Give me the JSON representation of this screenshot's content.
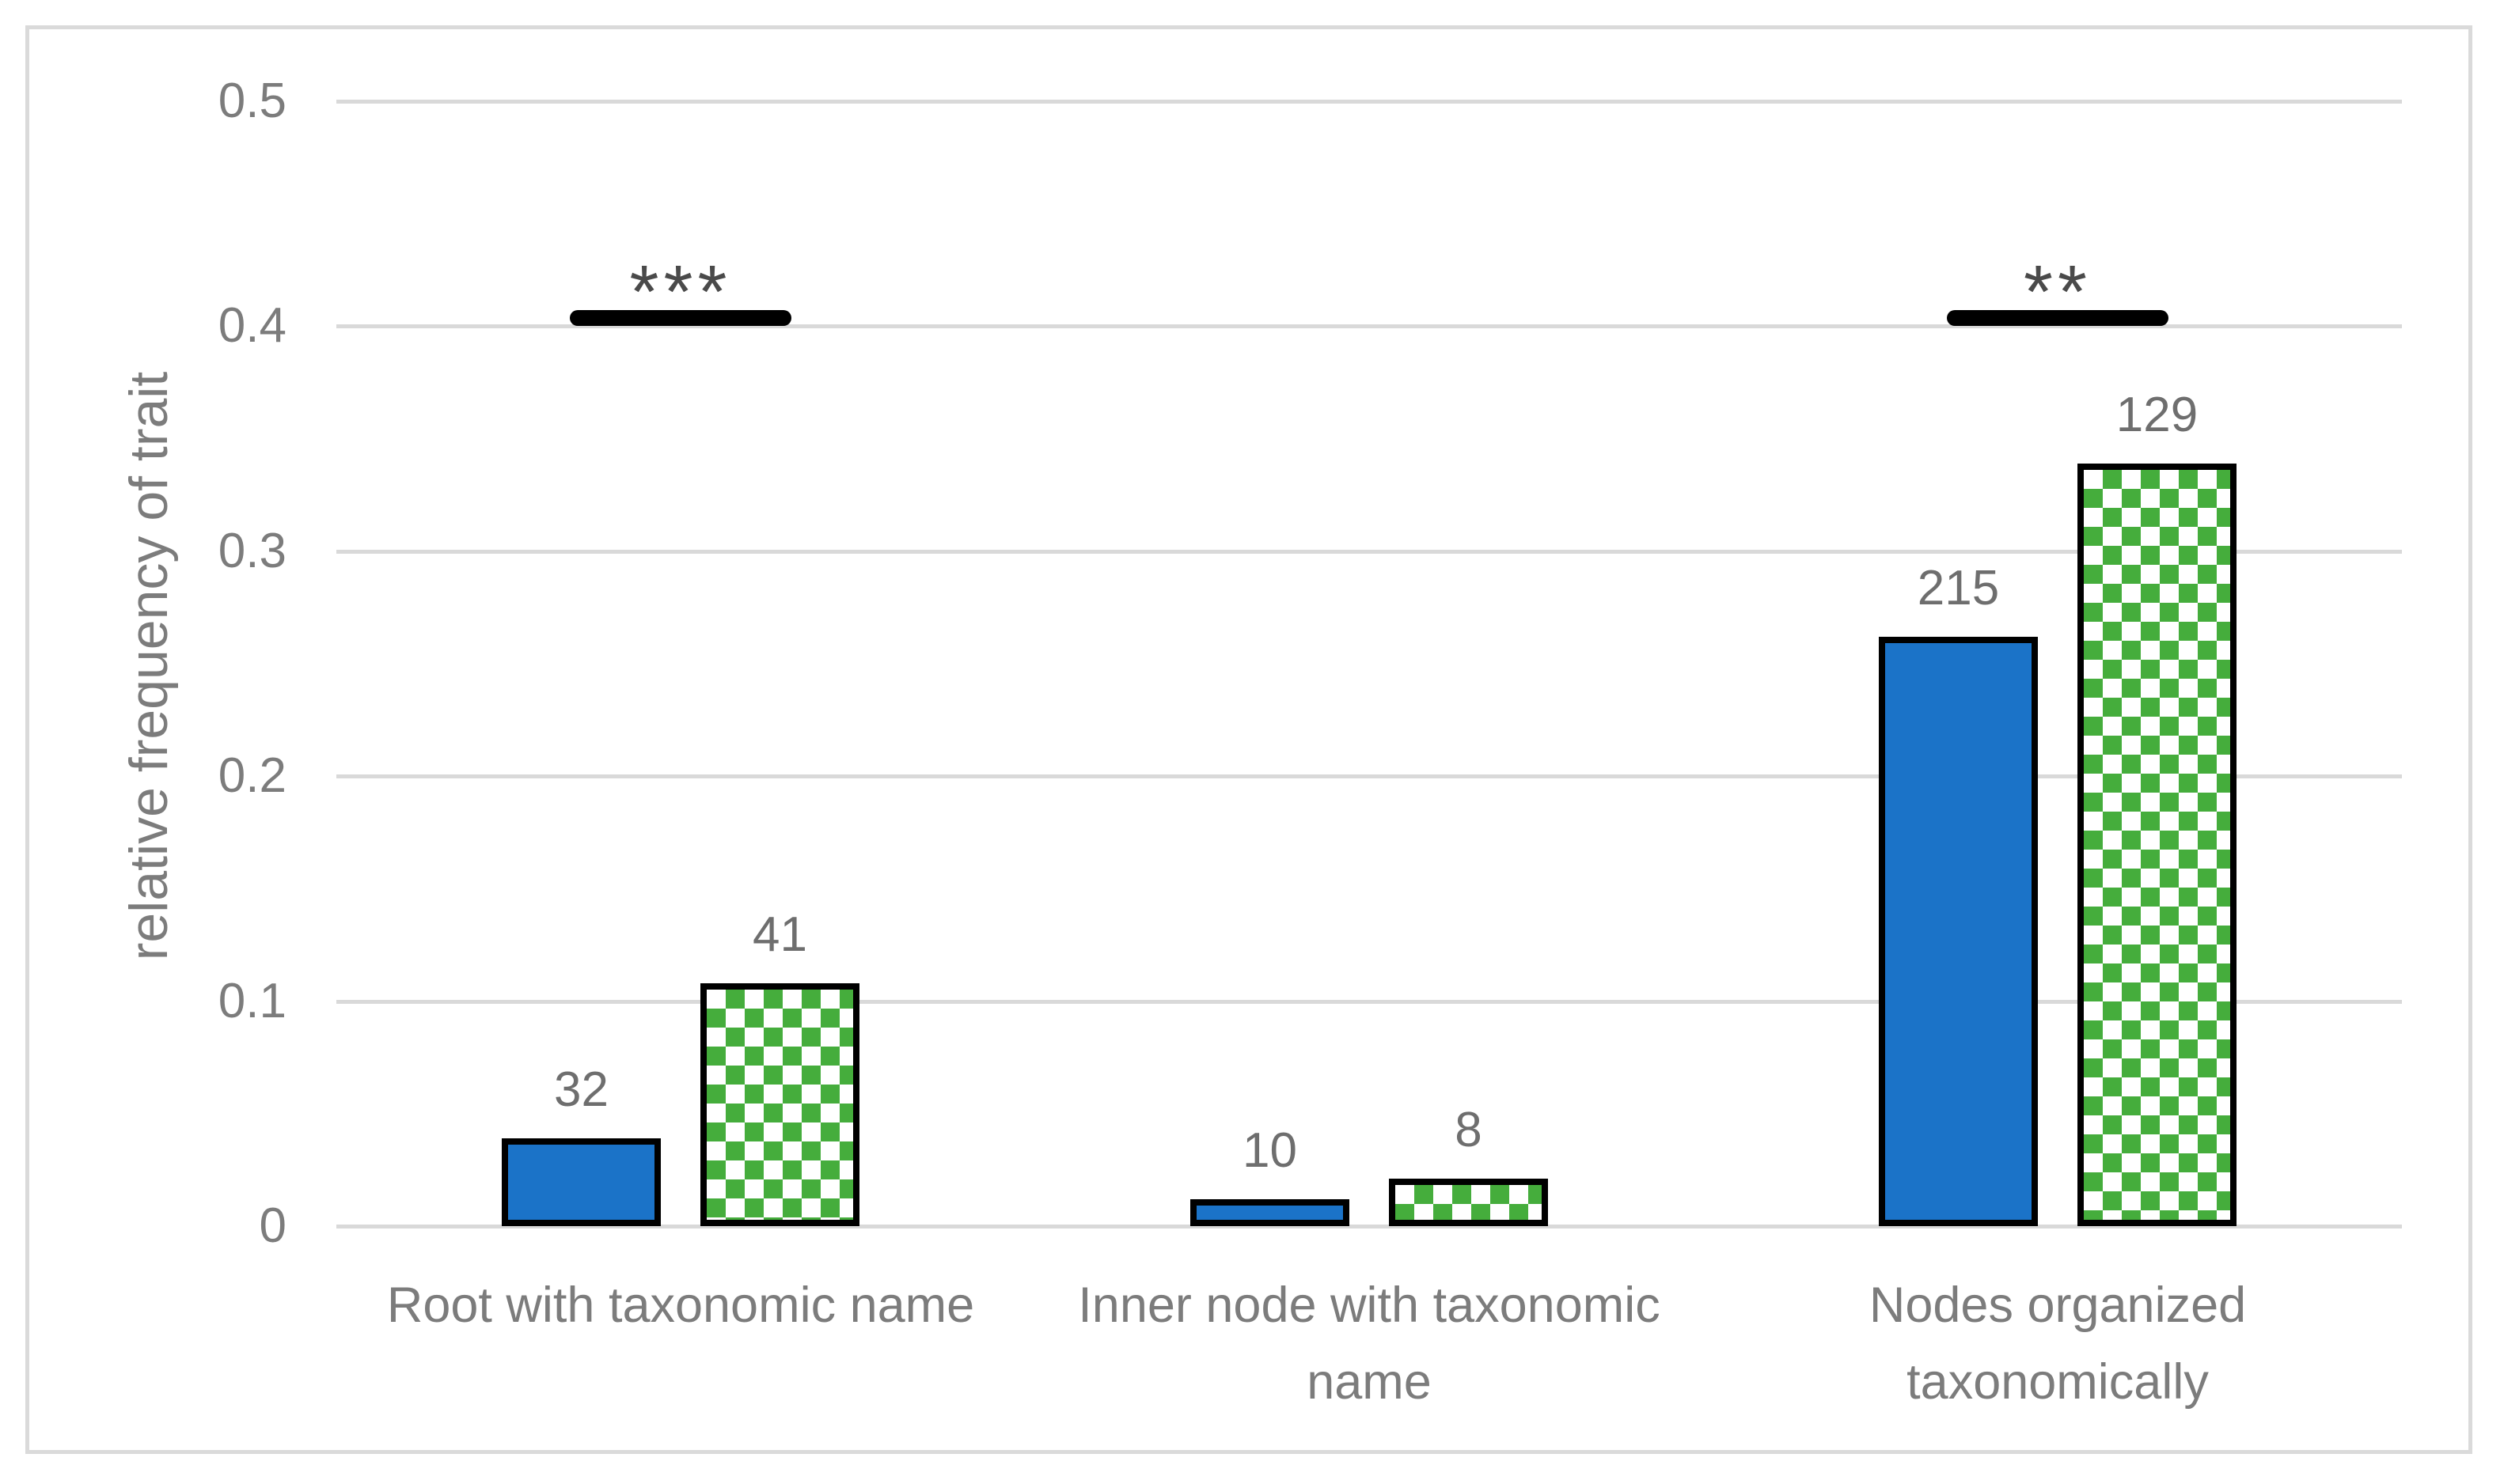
{
  "chart_data": {
    "type": "bar",
    "title": "",
    "ylabel": "relative frequency of trait",
    "xlabel": "",
    "ylim": [
      0,
      0.5
    ],
    "yticks": [
      0,
      0.1,
      0.2,
      0.3,
      0.4,
      0.5
    ],
    "ytick_labels": [
      "0",
      "0.1",
      "0.2",
      "0.3",
      "0.4",
      "0.5"
    ],
    "grid": true,
    "legend_position": "none",
    "categories": [
      {
        "label": "Root with taxonomic name",
        "lines": [
          "Root with taxonomic name"
        ]
      },
      {
        "label": "Inner node with taxonomic name",
        "lines": [
          "Inner node with taxonomic",
          "name"
        ]
      },
      {
        "label": "Nodes organized taxonomically",
        "lines": [
          "Nodes organized",
          "taxonomically"
        ]
      }
    ],
    "series": [
      {
        "name": "blue-solid-series",
        "fill": "solid",
        "color": "#1b73c8",
        "border_color": "#000000",
        "values": [
          0.039,
          0.012,
          0.262
        ],
        "bar_count_labels": [
          "32",
          "10",
          "215"
        ]
      },
      {
        "name": "green-checker-series",
        "fill": "checker",
        "color": "#45ad3c",
        "checker_bg": "#ffffff",
        "border_color": "#000000",
        "values": [
          0.108,
          0.021,
          0.339
        ],
        "bar_count_labels": [
          "41",
          "8",
          "129"
        ]
      }
    ],
    "annotations": [
      {
        "category_index": 0,
        "text": "***"
      },
      {
        "category_index": 2,
        "text": "**"
      }
    ]
  },
  "colors": {
    "grid": "#d9d9d9",
    "frame_border": "#dadada",
    "axis_text": "#7c7c7c",
    "data_label_text": "#6e6e6e",
    "significance_line": "#000000",
    "significance_text": "#4a4a4a",
    "background": "#ffffff"
  }
}
